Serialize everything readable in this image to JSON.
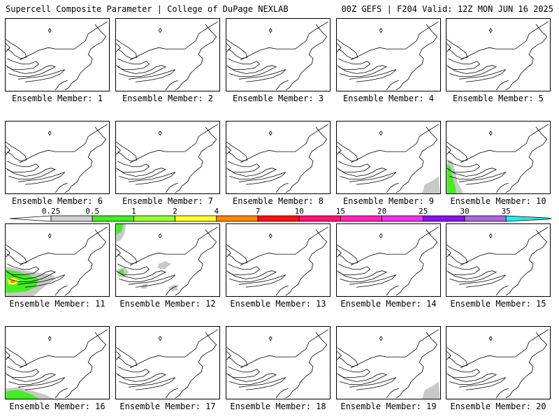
{
  "header": {
    "title": "Supercell Composite Parameter | College of DuPage NEXLAB",
    "run_info": "00Z GEFS | F204 Valid: 12Z MON JUN 16 2025"
  },
  "panels": [
    {
      "label": "Ensemble Member: 1",
      "blobs": []
    },
    {
      "label": "Ensemble Member: 2",
      "blobs": []
    },
    {
      "label": "Ensemble Member: 3",
      "blobs": []
    },
    {
      "label": "Ensemble Member: 4",
      "blobs": []
    },
    {
      "label": "Ensemble Member: 5",
      "blobs": []
    },
    {
      "label": "Ensemble Member: 6",
      "blobs": []
    },
    {
      "label": "Ensemble Member: 7",
      "blobs": []
    },
    {
      "label": "Ensemble Member: 8",
      "blobs": []
    },
    {
      "label": "Ensemble Member: 9",
      "blobs": [
        "grey-southeast"
      ]
    },
    {
      "label": "Ensemble Member: 10",
      "blobs": [
        "green-west"
      ]
    },
    {
      "label": "Ensemble Member: 11",
      "blobs": [
        "green-southwest-strong"
      ]
    },
    {
      "label": "Ensemble Member: 12",
      "blobs": [
        "green-northwest-corner",
        "grey-scattered"
      ]
    },
    {
      "label": "Ensemble Member: 13",
      "blobs": []
    },
    {
      "label": "Ensemble Member: 14",
      "blobs": []
    },
    {
      "label": "Ensemble Member: 15",
      "blobs": []
    },
    {
      "label": "Ensemble Member: 16",
      "blobs": [
        "green-bottom-left"
      ]
    },
    {
      "label": "Ensemble Member: 17",
      "blobs": []
    },
    {
      "label": "Ensemble Member: 18",
      "blobs": []
    },
    {
      "label": "Ensemble Member: 19",
      "blobs": [
        "grey-southeast"
      ]
    },
    {
      "label": "Ensemble Member: 20",
      "blobs": []
    }
  ],
  "colorbar": {
    "ticks": [
      "0.25",
      "0.5",
      "1",
      "2",
      "4",
      "7",
      "10",
      "15",
      "20",
      "25",
      "30",
      "35"
    ],
    "colors": [
      "#d0d0d0",
      "#44ee22",
      "#99ff33",
      "#ffff33",
      "#ff8800",
      "#ff1111",
      "#ff1177",
      "#ff22bb",
      "#ee33ee",
      "#8811ee",
      "#aa66dd",
      "#22eeee"
    ]
  }
}
